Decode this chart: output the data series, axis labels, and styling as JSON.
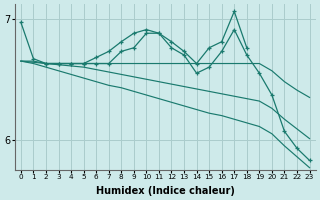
{
  "xlabel": "Humidex (Indice chaleur)",
  "bg_color": "#ceeaea",
  "grid_color": "#aacccc",
  "line_color": "#1a7a6e",
  "x_values": [
    0,
    1,
    2,
    3,
    4,
    5,
    6,
    7,
    8,
    9,
    10,
    11,
    12,
    13,
    14,
    15,
    16,
    17,
    18,
    19,
    20,
    21,
    22,
    23
  ],
  "series1": [
    6.97,
    6.67,
    6.63,
    6.63,
    6.63,
    6.63,
    6.68,
    6.73,
    6.81,
    6.88,
    6.91,
    6.88,
    6.81,
    6.73,
    6.63,
    6.76,
    6.81,
    7.06,
    6.76,
    null,
    null,
    null,
    null,
    null
  ],
  "series2": [
    null,
    null,
    6.63,
    6.63,
    6.63,
    6.63,
    6.63,
    6.63,
    6.73,
    6.76,
    6.88,
    6.88,
    6.76,
    6.7,
    6.55,
    6.6,
    6.73,
    6.91,
    6.7,
    6.55,
    6.37,
    6.07,
    5.93,
    5.83
  ],
  "series3": [
    6.65,
    6.64,
    6.63,
    6.63,
    6.63,
    6.63,
    6.63,
    6.63,
    6.63,
    6.63,
    6.63,
    6.63,
    6.63,
    6.63,
    6.63,
    6.63,
    6.63,
    6.63,
    6.63,
    6.63,
    6.57,
    6.48,
    6.41,
    6.35
  ],
  "series4": [
    6.65,
    6.65,
    6.63,
    6.62,
    6.61,
    6.6,
    6.58,
    6.56,
    6.54,
    6.52,
    6.5,
    6.48,
    6.46,
    6.44,
    6.42,
    6.4,
    6.38,
    6.36,
    6.34,
    6.32,
    6.26,
    6.17,
    6.09,
    6.01
  ],
  "series5": [
    6.65,
    6.63,
    6.6,
    6.57,
    6.54,
    6.51,
    6.48,
    6.45,
    6.43,
    6.4,
    6.37,
    6.34,
    6.31,
    6.28,
    6.25,
    6.22,
    6.2,
    6.17,
    6.14,
    6.11,
    6.05,
    5.95,
    5.86,
    5.77
  ],
  "ylim": [
    5.75,
    7.12
  ],
  "yticks": [
    6.0,
    7.0
  ],
  "xlim": [
    -0.5,
    23.5
  ]
}
